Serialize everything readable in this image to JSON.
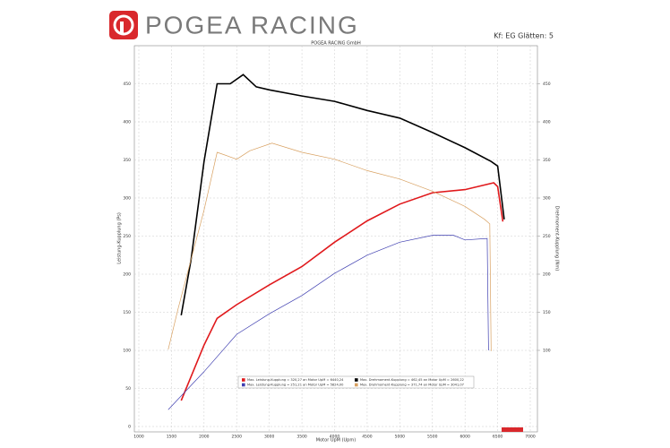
{
  "brand": "POGEA RACING",
  "settings_label": "Kf: EG Glätten: 5",
  "chart_data": {
    "type": "line",
    "title": "POGEA RACING GmbH",
    "x_label": "Motor UpM (Upm)",
    "y_label": "Leistung-Kupplung (Ps)",
    "y2_label": "Drehmoment-Kupplung (Nm)",
    "xlim": [
      1000,
      7000
    ],
    "xticks": [
      1000,
      1500,
      2000,
      2500,
      3000,
      3500,
      4000,
      4500,
      5000,
      5500,
      6000,
      6500,
      7000
    ],
    "ylim": [
      0,
      500
    ],
    "yticks": [
      0,
      50,
      100,
      150,
      200,
      250,
      300,
      350,
      400,
      450
    ],
    "y2lim": [
      0,
      500
    ],
    "y2ticks": [
      100,
      150,
      200,
      250,
      300,
      350,
      400,
      450
    ],
    "grid": true,
    "series": [
      {
        "name": "Max. Leistung-Kupplung = 320,27 an Motor UpM = 6440,24",
        "color": "#e0191c",
        "x": [
          1650,
          2000,
          2200,
          2500,
          3000,
          3500,
          4000,
          4500,
          5000,
          5500,
          6000,
          6440,
          6500,
          6580
        ],
        "values": [
          34,
          107,
          142,
          160,
          186,
          210,
          242,
          270,
          292,
          307,
          311,
          320,
          315,
          269
        ]
      },
      {
        "name": "Max. Leistung-Kupplung = 251,21 an Motor UpM = 5824,00",
        "color": "#3f3fb0",
        "x": [
          1450,
          2000,
          2500,
          3000,
          3500,
          4000,
          4500,
          5000,
          5500,
          5824,
          6000,
          6340,
          6360
        ],
        "values": [
          22,
          72,
          121,
          148,
          172,
          201,
          225,
          242,
          251,
          251,
          245,
          247,
          100
        ]
      },
      {
        "name": "Max. Drehmoment-Kupplung = 462,45 an Motor UpM = 2600,22",
        "color": "#000000",
        "axis": "y2",
        "x": [
          1650,
          1800,
          2000,
          2200,
          2400,
          2600,
          2800,
          3000,
          3500,
          4000,
          4500,
          5000,
          5500,
          6000,
          6400,
          6500,
          6600
        ],
        "values": [
          146,
          219,
          348,
          450,
          450,
          462,
          446,
          442,
          434,
          427,
          415,
          405,
          386,
          366,
          348,
          342,
          272
        ]
      },
      {
        "name": "Max. Drehmoment-Kupplung = 371,74 an Motor UpM = 3041,07",
        "color": "#d8a060",
        "axis": "y2",
        "x": [
          1450,
          1600,
          2000,
          2200,
          2500,
          2700,
          3041,
          3500,
          4000,
          4500,
          5000,
          5500,
          6000,
          6300,
          6380,
          6400
        ],
        "values": [
          101,
          154,
          284,
          360,
          351,
          362,
          372,
          360,
          351,
          336,
          325,
          309,
          289,
          272,
          266,
          99
        ]
      }
    ]
  }
}
